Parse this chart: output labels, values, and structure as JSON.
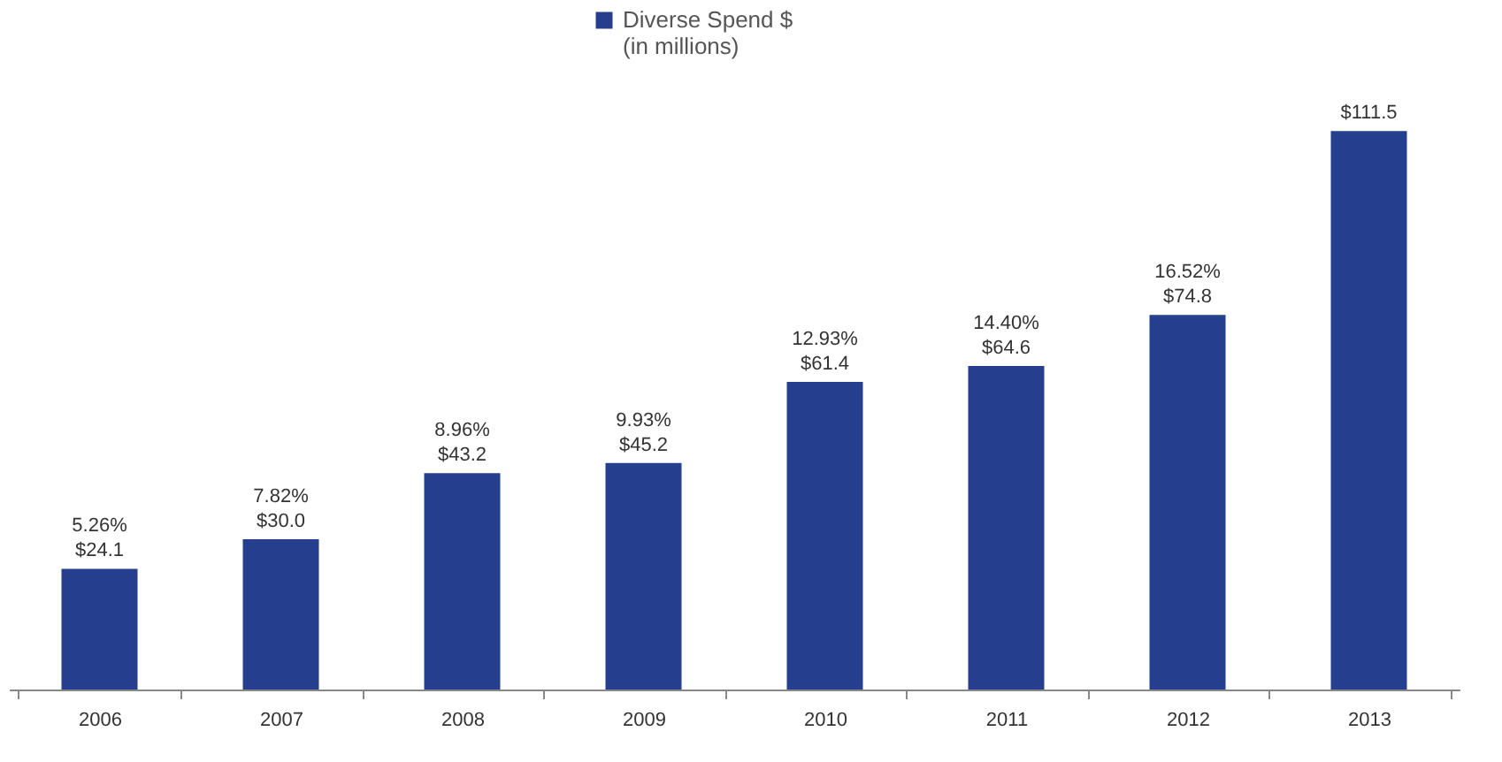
{
  "chart_data": {
    "type": "bar",
    "categories": [
      "2006",
      "2007",
      "2008",
      "2009",
      "2010",
      "2011",
      "2012",
      "2013"
    ],
    "series": [
      {
        "name": "Diverse Spend $\n(in millions)",
        "color": "#253f8e",
        "values": [
          24.1,
          30.0,
          43.2,
          45.2,
          61.4,
          64.6,
          74.8,
          111.5
        ],
        "value_labels": [
          "$24.1",
          "$30.0",
          "$43.2",
          "$45.2",
          "$61.4",
          "$64.6",
          "$74.8",
          "$111.5"
        ]
      }
    ],
    "annotations": [
      {
        "text": "5.26%",
        "x": "2006",
        "y": 24.1
      },
      {
        "text": "7.82%",
        "x": "2007",
        "y": 30.0
      },
      {
        "text": "8.96%",
        "x": "2008",
        "y": 43.2
      },
      {
        "text": "9.93%",
        "x": "2009",
        "y": 45.2
      },
      {
        "text": "12.93%",
        "x": "2010",
        "y": 61.4
      },
      {
        "text": "14.40%",
        "x": "2011",
        "y": 64.6
      },
      {
        "text": "16.52%",
        "x": "2012",
        "y": 74.8
      }
    ],
    "legend": "top",
    "grid": false
  }
}
